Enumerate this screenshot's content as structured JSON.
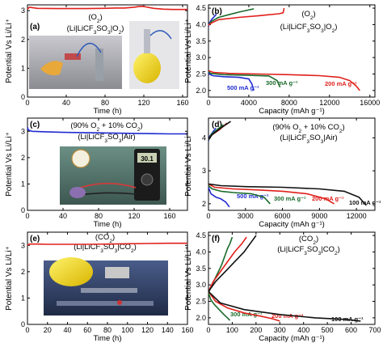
{
  "chart_data": [
    {
      "id": "a",
      "type": "line",
      "panel_label": "(a)",
      "annotation": [
        "(O",
        "2",
        ")",
        "(Li|LiCF",
        "3",
        "SO",
        "3",
        "|O",
        "2",
        ")"
      ],
      "xlabel": "Time (h)",
      "ylabel": "Potential Vs Li/Li⁺",
      "xlim": [
        0,
        165
      ],
      "ylim": [
        0,
        3.2
      ],
      "xticks": [
        "0",
        "40",
        "80",
        "120",
        "160"
      ],
      "yticks": [
        "0",
        "1",
        "2",
        "3"
      ],
      "series": [
        {
          "color": "#e0201b",
          "x": [
            0,
            2,
            10,
            30,
            60,
            80,
            90,
            100,
            110,
            115,
            118,
            122,
            130,
            140,
            150,
            160,
            165
          ],
          "y": [
            3.05,
            3.12,
            3.08,
            3.07,
            3.07,
            3.08,
            3.09,
            3.09,
            3.12,
            3.14,
            3.15,
            3.13,
            3.08,
            3.05,
            3.04,
            3.04,
            3.04
          ]
        }
      ],
      "photos": [
        "balloon-photo",
        "cell-setup-photo"
      ]
    },
    {
      "id": "b",
      "type": "line",
      "panel_label": "(b)",
      "annotation": [
        "(O",
        "2",
        ")",
        "(Li|LiCF",
        "3",
        "SO",
        "3",
        "|O",
        "2",
        ")"
      ],
      "xlabel": "Capacity (mAh g⁻¹)",
      "ylabel": "",
      "xlim": [
        0,
        16500
      ],
      "ylim": [
        1.8,
        4.6
      ],
      "xticks": [
        "0",
        "4000",
        "8000",
        "12000",
        "16000"
      ],
      "yticks": [
        "2.0",
        "2.5",
        "3.0",
        "3.5",
        "4.0",
        "4.5"
      ],
      "series": [
        {
          "name": "500 mA g⁻¹",
          "color": "#1f2bd0",
          "discharge": {
            "x": [
              0,
              100,
              400,
              1500,
              3000,
              4000,
              4300,
              4500
            ],
            "y": [
              2.58,
              2.5,
              2.45,
              2.42,
              2.4,
              2.35,
              2.2,
              2.0
            ]
          },
          "charge": {
            "x": [
              0,
              100,
              300,
              600,
              800
            ],
            "y": [
              3.95,
              4.05,
              4.15,
              4.25,
              4.32
            ]
          }
        },
        {
          "name": "300 mA g⁻¹",
          "color": "#1a6a2a",
          "discharge": {
            "x": [
              0,
              200,
              1500,
              4000,
              6000,
              6800,
              7100
            ],
            "y": [
              2.58,
              2.52,
              2.48,
              2.46,
              2.44,
              2.3,
              2.1
            ]
          },
          "charge": {
            "x": [
              0,
              300,
              1000,
              2000,
              3000,
              4500
            ],
            "y": [
              3.98,
              4.1,
              4.22,
              4.3,
              4.38,
              4.48
            ]
          }
        },
        {
          "name": "200 mA g⁻¹",
          "color": "#e0201b",
          "discharge": {
            "x": [
              0,
              500,
              2000,
              5000,
              8000,
              11000,
              13000,
              14000,
              14600,
              15000
            ],
            "y": [
              2.6,
              2.55,
              2.52,
              2.5,
              2.48,
              2.45,
              2.4,
              2.3,
              2.15,
              2.0
            ]
          },
          "charge": {
            "x": [
              0,
              300,
              1000,
              3000,
              5000,
              6000,
              7000,
              7400,
              7500
            ],
            "y": [
              3.98,
              4.05,
              4.15,
              4.22,
              4.27,
              4.3,
              4.33,
              4.36,
              4.5
            ]
          }
        }
      ]
    },
    {
      "id": "c",
      "type": "line",
      "panel_label": "(c)",
      "annotation": [
        "(90% O",
        "2",
        " + 10% CO",
        "2",
        ")",
        "(Li|LiCF",
        "3",
        "SO",
        "3",
        "|Air)"
      ],
      "xlabel": "Time (h)",
      "ylabel": "Potential Vs Li/Li⁺",
      "xlim": [
        0,
        180
      ],
      "ylim": [
        0,
        3.5
      ],
      "xticks": [
        "0",
        "40",
        "80",
        "120",
        "160"
      ],
      "yticks": [
        "0",
        "1",
        "2",
        "3"
      ],
      "series": [
        {
          "color": "#1f2bd0",
          "x": [
            0,
            1,
            5,
            20,
            40,
            60,
            80,
            100,
            120,
            140,
            160,
            180
          ],
          "y": [
            3.15,
            3.05,
            3.0,
            2.98,
            2.96,
            2.95,
            2.94,
            2.93,
            2.92,
            2.91,
            2.9,
            2.9
          ]
        }
      ],
      "photos": [
        "multimeter-photo"
      ]
    },
    {
      "id": "d",
      "type": "line",
      "panel_label": "(d)",
      "annotation": [
        "(90% O",
        "2",
        " + 10% CO",
        "2",
        ")",
        "(Li|LiCF",
        "3",
        "SO",
        "3",
        "|Air)"
      ],
      "xlabel": "Capacity (mAh g⁻¹)",
      "ylabel": "",
      "xlim": [
        0,
        13500
      ],
      "ylim": [
        1.8,
        4.6
      ],
      "xticks": [
        "0",
        "3000",
        "6000",
        "9000",
        "12000"
      ],
      "yticks": [
        "2",
        "3",
        "4"
      ],
      "series": [
        {
          "name": "500 mA g⁻¹",
          "color": "#1f2bd0",
          "discharge": {
            "x": [
              0,
              200,
              600,
              1000,
              1400,
              1700
            ],
            "y": [
              2.5,
              2.3,
              2.2,
              2.15,
              2.05,
              1.9
            ]
          },
          "charge": {
            "x": [
              0,
              100,
              300,
              600
            ],
            "y": [
              3.9,
              4.05,
              4.15,
              4.3
            ]
          }
        },
        {
          "name": "300 mA g⁻¹",
          "color": "#1a6a2a",
          "discharge": {
            "x": [
              0,
              300,
              1000,
              2000,
              3500,
              4500,
              5000
            ],
            "y": [
              2.55,
              2.45,
              2.38,
              2.34,
              2.3,
              2.2,
              2.0
            ]
          },
          "charge": {
            "x": [
              0,
              200,
              700,
              1200
            ],
            "y": [
              3.92,
              4.1,
              4.25,
              4.4
            ]
          }
        },
        {
          "name": "200 mA g⁻¹",
          "color": "#e0201b",
          "discharge": {
            "x": [
              0,
              500,
              2000,
              4000,
              6000,
              8000,
              9500,
              10200
            ],
            "y": [
              2.6,
              2.5,
              2.45,
              2.42,
              2.38,
              2.3,
              2.15,
              2.0
            ]
          },
          "charge": {
            "x": [
              0,
              300,
              900,
              1500
            ],
            "y": [
              3.95,
              4.1,
              4.25,
              4.45
            ]
          }
        },
        {
          "name": "100 mA g⁻¹",
          "color": "#111111",
          "discharge": {
            "x": [
              0,
              1000,
              3000,
              6000,
              9000,
              11000,
              12200,
              12800
            ],
            "y": [
              2.6,
              2.55,
              2.52,
              2.5,
              2.45,
              2.38,
              2.2,
              1.95
            ]
          },
          "charge": {
            "x": [
              0,
              300,
              1000,
              1800
            ],
            "y": [
              3.95,
              4.1,
              4.3,
              4.5
            ]
          }
        }
      ]
    },
    {
      "id": "e",
      "type": "line",
      "panel_label": "(e)",
      "annotation": [
        "(CO",
        "2",
        ")",
        "(Li|LiCF",
        "3",
        "SO",
        "3",
        "|CO",
        "2",
        ")"
      ],
      "xlabel": "Time (h)",
      "ylabel": "Potential Vs Li/Li⁺",
      "xlim": [
        0,
        160
      ],
      "ylim": [
        0,
        3.5
      ],
      "xticks": [
        "0",
        "20",
        "40",
        "60",
        "80",
        "100",
        "120",
        "140",
        "160"
      ],
      "yticks": [
        "0",
        "1",
        "2",
        "3"
      ],
      "series": [
        {
          "color": "#e0201b",
          "x": [
            0,
            2,
            10,
            20,
            40,
            60,
            80,
            100,
            120,
            140,
            160
          ],
          "y": [
            3.0,
            3.05,
            3.05,
            3.04,
            3.04,
            3.04,
            3.05,
            3.06,
            3.07,
            3.08,
            3.08
          ]
        }
      ],
      "photos": [
        "co2-cell-photo"
      ]
    },
    {
      "id": "f",
      "type": "line",
      "panel_label": "(f)",
      "annotation": [
        "(CO",
        "2",
        ")",
        "(Li|LiCF",
        "3",
        "SO",
        "3",
        "|CO",
        "2",
        ")"
      ],
      "xlabel": "Capacity (mAh g⁻¹)",
      "ylabel": "",
      "xlim": [
        0,
        700
      ],
      "ylim": [
        1.8,
        4.6
      ],
      "xticks": [
        "0",
        "100",
        "200",
        "300",
        "400",
        "500",
        "600",
        "700"
      ],
      "yticks": [
        "2.0",
        "2.5",
        "3.0",
        "3.5",
        "4.0",
        "4.5"
      ],
      "series": [
        {
          "name": "300 mA g⁻¹",
          "color": "#1a6a2a",
          "discharge": {
            "x": [
              0,
              10,
              25,
              45,
              65,
              80,
              90
            ],
            "y": [
              2.75,
              2.55,
              2.4,
              2.25,
              2.1,
              2.0,
              1.92
            ]
          },
          "charge": {
            "x": [
              0,
              15,
              35,
              55,
              70,
              80,
              90,
              100
            ],
            "y": [
              2.75,
              3.0,
              3.3,
              3.6,
              3.9,
              4.1,
              4.25,
              4.45
            ]
          }
        },
        {
          "name": "200 mA g⁻¹",
          "color": "#e0201b",
          "discharge": {
            "x": [
              0,
              30,
              80,
              150,
              220,
              270,
              300
            ],
            "y": [
              2.8,
              2.5,
              2.3,
              2.15,
              2.05,
              1.97,
              1.9
            ]
          },
          "charge": {
            "x": [
              0,
              20,
              50,
              80,
              110,
              140,
              160
            ],
            "y": [
              2.8,
              3.1,
              3.4,
              3.7,
              4.0,
              4.25,
              4.45
            ]
          }
        },
        {
          "name": "100 mA g⁻¹",
          "color": "#111111",
          "discharge": {
            "x": [
              0,
              50,
              150,
              300,
              450,
              580,
              640
            ],
            "y": [
              2.8,
              2.45,
              2.25,
              2.1,
              2.0,
              1.95,
              1.9
            ]
          },
          "charge": {
            "x": [
              0,
              30,
              70,
              110,
              150,
              180,
              200
            ],
            "y": [
              2.8,
              3.1,
              3.4,
              3.7,
              4.0,
              4.3,
              4.5
            ]
          }
        }
      ]
    }
  ]
}
